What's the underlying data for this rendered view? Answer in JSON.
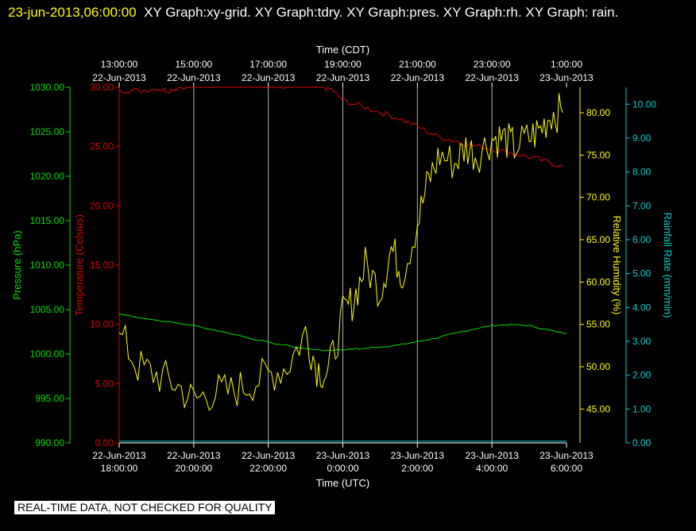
{
  "header": {
    "timestamp": "23-jun-2013,06:00:00",
    "graph_list": "XY Graph:xy-grid.  XY Graph:tdry.  XY Graph:pres.  XY Graph:rh.  XY Graph: rain."
  },
  "disclaimer": "REAL-TIME DATA, NOT CHECKED FOR QUALITY",
  "colors": {
    "background": "#000000",
    "grid": "#c8d8e8",
    "pressure": "#00e000",
    "temperature": "#e00000",
    "humidity": "#ffff00",
    "rain": "#00d0d0"
  },
  "chart_data": {
    "type": "line",
    "x_top": {
      "label": "Time (CDT)",
      "ticks": [
        {
          "time": "13:00:00",
          "date": "22-Jun-2013"
        },
        {
          "time": "15:00:00",
          "date": "22-Jun-2013"
        },
        {
          "time": "17:00:00",
          "date": "22-Jun-2013"
        },
        {
          "time": "19:00:00",
          "date": "22-Jun-2013"
        },
        {
          "time": "21:00:00",
          "date": "22-Jun-2013"
        },
        {
          "time": "23:00:00",
          "date": "22-Jun-2013"
        },
        {
          "time": "1:00:00",
          "date": "23-Jun-2013"
        }
      ]
    },
    "x_bottom": {
      "label": "Time (UTC)",
      "range_hours_utc": [
        18,
        30
      ],
      "ticks": [
        {
          "date": "22-Jun-2013",
          "time": "18:00:00",
          "hour": 18
        },
        {
          "date": "22-Jun-2013",
          "time": "20:00:00",
          "hour": 20
        },
        {
          "date": "22-Jun-2013",
          "time": "22:00:00",
          "hour": 22
        },
        {
          "date": "23-Jun-2013",
          "time": "0:00:00",
          "hour": 24
        },
        {
          "date": "23-Jun-2013",
          "time": "2:00:00",
          "hour": 26
        },
        {
          "date": "23-Jun-2013",
          "time": "4:00:00",
          "hour": 28
        },
        {
          "date": "23-Jun-2013",
          "time": "6:00:00",
          "hour": 30
        }
      ]
    },
    "axes": {
      "pressure": {
        "label": "Pressure (hPa)",
        "range": [
          990,
          1030
        ],
        "ticks": [
          "990.00",
          "995.00",
          "1000.00",
          "1005.00",
          "1010.00",
          "1015.00",
          "1020.00",
          "1025.00",
          "1030.00"
        ]
      },
      "temperature": {
        "label": "Temperature (Celsius)",
        "range": [
          0,
          30
        ],
        "ticks": [
          "0.00",
          "5.00",
          "10.00",
          "15.00",
          "20.00",
          "25.00",
          "30.00"
        ]
      },
      "humidity": {
        "label": "Relative Humidity (%)",
        "range": [
          41,
          83
        ],
        "ticks": [
          "45.00",
          "50.00",
          "55.00",
          "60.00",
          "65.00",
          "70.00",
          "75.00",
          "80.00"
        ]
      },
      "rain": {
        "label": "Rainfall Rate (mm/min)",
        "range": [
          0,
          10.5
        ],
        "ticks": [
          "0.00",
          "1.00",
          "2.00",
          "3.00",
          "4.00",
          "5.00",
          "6.00",
          "7.00",
          "8.00",
          "9.00",
          "10.00"
        ]
      }
    },
    "series": [
      {
        "key": "pressure",
        "x": [
          18,
          19,
          20,
          21,
          22,
          23,
          23.5,
          24,
          24.5,
          25,
          25.5,
          26,
          26.5,
          27,
          27.5,
          28,
          28.5,
          29,
          29.5,
          30
        ],
        "y": [
          1004.5,
          1003.8,
          1003.2,
          1002.3,
          1001.3,
          1000.6,
          1000.4,
          1000.5,
          1000.6,
          1000.8,
          1001.0,
          1001.4,
          1001.8,
          1002.3,
          1002.8,
          1003.2,
          1003.3,
          1003.2,
          1002.7,
          1002.3
        ]
      },
      {
        "key": "temperature",
        "x": [
          18,
          18.5,
          19,
          19.3,
          19.6,
          20,
          21,
          22,
          22.3,
          22.6,
          23,
          23.4,
          23.7,
          24,
          24.5,
          25,
          25.5,
          26,
          26.5,
          27,
          27.5,
          28,
          28.5,
          29,
          29.5,
          29.9
        ],
        "y": [
          29.8,
          29.7,
          29.9,
          29.7,
          30.0,
          30.2,
          30.3,
          30.2,
          30.1,
          30.0,
          30.2,
          30.1,
          29.8,
          28.9,
          28.4,
          27.9,
          27.4,
          26.7,
          25.9,
          25.5,
          25.1,
          24.8,
          24.5,
          24.1,
          23.7,
          23.3
        ]
      },
      {
        "key": "humidity",
        "x": [
          18,
          18.5,
          19,
          19.5,
          20,
          20.5,
          21,
          21.5,
          22,
          22.5,
          23,
          23.3,
          23.6,
          24,
          24.3,
          24.6,
          25,
          25.3,
          25.6,
          26,
          26.3,
          26.6,
          27,
          27.3,
          27.6,
          28,
          28.3,
          28.6,
          29,
          29.3,
          29.6,
          29.9
        ],
        "y": [
          54,
          50,
          49,
          48,
          46,
          47,
          47,
          48,
          49,
          50,
          54,
          50,
          49,
          56,
          58,
          62,
          59,
          64,
          61,
          67,
          72,
          75,
          74,
          76,
          75,
          77,
          77,
          76,
          77,
          78,
          80,
          80
        ]
      },
      {
        "key": "rain",
        "x": [
          18,
          30
        ],
        "y": [
          0.05,
          0.05
        ]
      }
    ]
  }
}
